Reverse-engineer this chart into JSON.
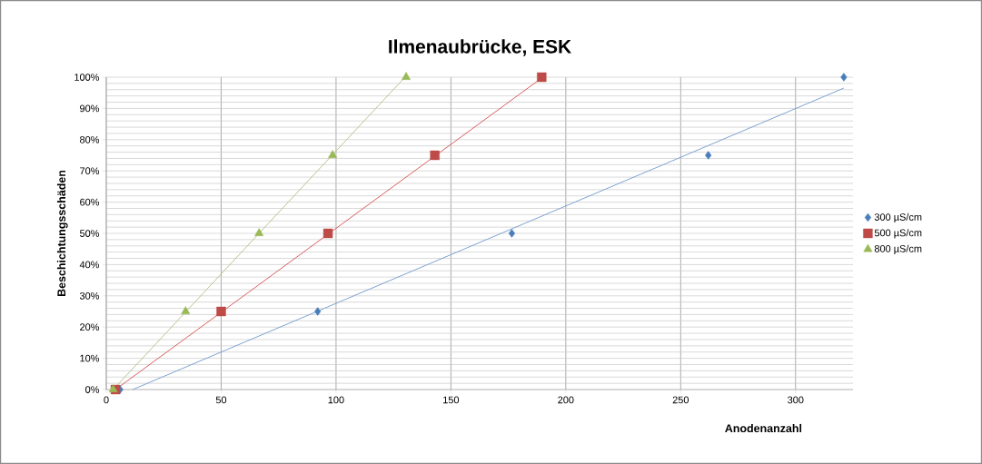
{
  "chart_data": {
    "type": "scatter",
    "title": "Ilmenaubrücke, ESK",
    "xlabel": "Anodenanzahl",
    "ylabel": "Beschichtungsschäden",
    "xlim": [
      0,
      325
    ],
    "xticks": [
      0,
      50,
      100,
      150,
      200,
      250,
      300
    ],
    "ylim": [
      0,
      100
    ],
    "yticks": [
      {
        "value": 0,
        "label": "0%"
      },
      {
        "value": 10,
        "label": "10%"
      },
      {
        "value": 20,
        "label": "20%"
      },
      {
        "value": 30,
        "label": "30%"
      },
      {
        "value": 40,
        "label": "40%"
      },
      {
        "value": 50,
        "label": "50%"
      },
      {
        "value": 60,
        "label": "60%"
      },
      {
        "value": 70,
        "label": "70%"
      },
      {
        "value": 80,
        "label": "80%"
      },
      {
        "value": 90,
        "label": "90%"
      },
      {
        "value": 100,
        "label": "100%"
      }
    ],
    "grid": true,
    "legend": "right",
    "series": [
      {
        "name": "300 µS/cm",
        "type": "scatter",
        "marker": "diamond",
        "color": "#4a7ebb",
        "x": [
          6,
          92,
          176.5,
          262,
          321
        ],
        "values": [
          0,
          25,
          50,
          75,
          100
        ]
      },
      {
        "name": "500 µS/cm",
        "type": "scatter",
        "marker": "square",
        "color": "#be4b48",
        "x": [
          4,
          50,
          96.5,
          143,
          189.5
        ],
        "values": [
          0,
          25,
          50,
          75,
          100
        ]
      },
      {
        "name": "800 µS/cm",
        "type": "scatter",
        "marker": "triangle",
        "color": "#98b954",
        "x": [
          3,
          34.5,
          66.5,
          98.5,
          130.5
        ],
        "values": [
          0,
          25,
          50,
          75,
          100
        ]
      },
      {
        "type": "line",
        "marker": "none",
        "color": "#7ea3d1",
        "x": [
          11.5,
          321
        ],
        "values": [
          0,
          96.5
        ]
      },
      {
        "type": "line",
        "marker": "none",
        "color": "#d95f5c",
        "x": [
          4,
          190
        ],
        "values": [
          0,
          100
        ]
      },
      {
        "type": "line",
        "marker": "none",
        "color": "#b5c48f",
        "x": [
          3,
          130
        ],
        "values": [
          0,
          100
        ]
      }
    ]
  }
}
